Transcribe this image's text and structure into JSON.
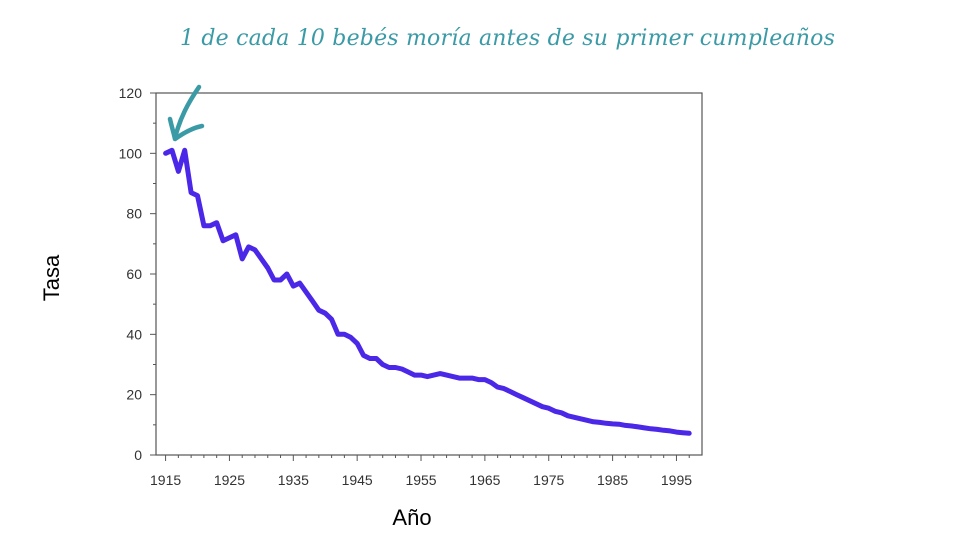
{
  "annotation": "1 de cada 10 bebés moría antes de su primer cumpleaños",
  "colors": {
    "line": "#4b27e8",
    "annotation": "#3a9aa6",
    "axis": "#555555"
  },
  "chart_data": {
    "type": "line",
    "xlabel": "Año",
    "ylabel": "Tasa",
    "xlim": [
      1913.5,
      1999
    ],
    "ylim": [
      0,
      120
    ],
    "xticks": [
      1915,
      1925,
      1935,
      1945,
      1955,
      1965,
      1975,
      1985,
      1995
    ],
    "yticks": [
      0,
      20,
      40,
      60,
      80,
      100,
      120
    ],
    "grid": false,
    "series": [
      {
        "x": [
          1915,
          1916,
          1917,
          1918,
          1919,
          1920,
          1921,
          1922,
          1923,
          1924,
          1925,
          1926,
          1927,
          1928,
          1929,
          1930,
          1931,
          1932,
          1933,
          1934,
          1935,
          1936,
          1937,
          1938,
          1939,
          1940,
          1941,
          1942,
          1943,
          1944,
          1945,
          1946,
          1947,
          1948,
          1949,
          1950,
          1951,
          1952,
          1953,
          1954,
          1955,
          1956,
          1957,
          1958,
          1959,
          1960,
          1961,
          1962,
          1963,
          1964,
          1965,
          1966,
          1967,
          1968,
          1969,
          1970,
          1971,
          1972,
          1973,
          1974,
          1975,
          1976,
          1977,
          1978,
          1979,
          1980,
          1981,
          1982,
          1983,
          1984,
          1985,
          1986,
          1987,
          1988,
          1989,
          1990,
          1991,
          1992,
          1993,
          1994,
          1995,
          1996,
          1997
        ],
        "values": [
          100,
          101,
          94,
          101,
          87,
          86,
          76,
          76,
          77,
          71,
          72,
          73,
          65,
          69,
          68,
          65,
          62,
          58,
          58,
          60,
          56,
          57,
          54,
          51,
          48,
          47,
          45,
          40,
          40,
          39,
          37,
          33,
          32,
          32,
          30,
          29,
          29,
          28.5,
          27.5,
          26.5,
          26.5,
          26,
          26.5,
          27,
          26.5,
          26,
          25.5,
          25.5,
          25.5,
          25,
          25,
          24,
          22.5,
          22,
          21,
          20,
          19,
          18,
          17,
          16,
          15.5,
          14.5,
          14,
          13,
          12.5,
          12,
          11.5,
          11,
          10.8,
          10.5,
          10.3,
          10.2,
          9.8,
          9.6,
          9.3,
          9,
          8.7,
          8.5,
          8.2,
          8,
          7.6,
          7.4,
          7.2
        ]
      }
    ]
  }
}
